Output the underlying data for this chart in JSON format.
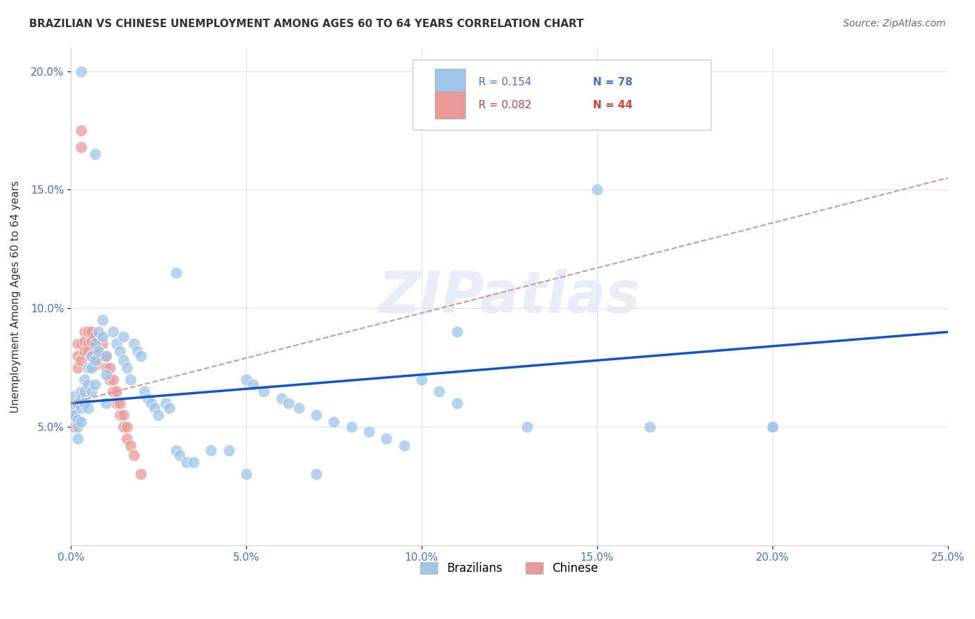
{
  "title": "BRAZILIAN VS CHINESE UNEMPLOYMENT AMONG AGES 60 TO 64 YEARS CORRELATION CHART",
  "source": "Source: ZipAtlas.com",
  "ylabel": "Unemployment Among Ages 60 to 64 years",
  "xlim": [
    0.0,
    0.25
  ],
  "ylim": [
    0.0,
    0.21
  ],
  "xticks": [
    0.0,
    0.05,
    0.1,
    0.15,
    0.2,
    0.25
  ],
  "yticks": [
    0.05,
    0.1,
    0.15,
    0.2
  ],
  "xticklabels": [
    "0.0%",
    "5.0%",
    "10.0%",
    "15.0%",
    "20.0%",
    "25.0%"
  ],
  "yticklabels": [
    "5.0%",
    "10.0%",
    "15.0%",
    "20.0%"
  ],
  "brazil_R": 0.154,
  "brazil_N": 78,
  "china_R": 0.082,
  "china_N": 44,
  "brazil_color": "#9fc5e8",
  "china_color": "#ea9999",
  "brazil_line_color": "#1155cc",
  "china_line_color": "#cc9999",
  "watermark": "ZIPatlas",
  "brazil_line_y0": 0.06,
  "brazil_line_y1": 0.09,
  "china_line_y0": 0.06,
  "china_line_y1": 0.155
}
